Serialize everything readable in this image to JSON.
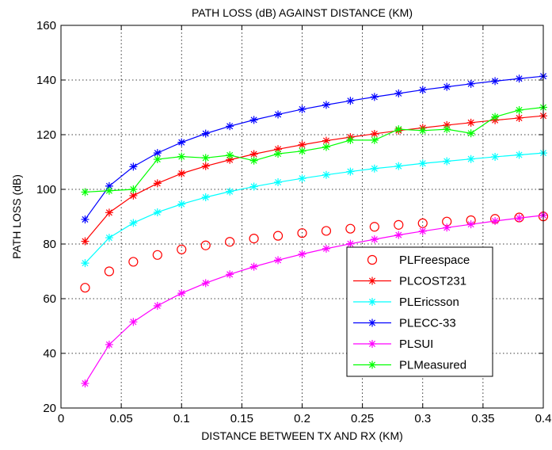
{
  "chart_data": {
    "type": "line",
    "title": "PATH LOSS (dB) AGAINST DISTANCE (KM)",
    "xlabel": "DISTANCE BETWEEN TX AND RX (KM)",
    "ylabel": "PATH LOSS (dB)",
    "xlim": [
      0,
      0.4
    ],
    "ylim": [
      20,
      160
    ],
    "xticks": [
      "0",
      "0.05",
      "0.1",
      "0.15",
      "0.2",
      "0.25",
      "0.3",
      "0.35",
      "0.4"
    ],
    "yticks": [
      "20",
      "40",
      "60",
      "80",
      "100",
      "120",
      "140",
      "160"
    ],
    "grid": true,
    "legend_position": "bottom-right",
    "x": [
      0.02,
      0.04,
      0.06,
      0.08,
      0.1,
      0.12,
      0.14,
      0.16,
      0.18,
      0.2,
      0.22,
      0.24,
      0.26,
      0.28,
      0.3,
      0.32,
      0.34,
      0.36,
      0.38,
      0.4
    ],
    "series": [
      {
        "name": "PLFreespace",
        "color": "#ff0000",
        "marker": "circle",
        "line": false,
        "values": [
          64.0,
          70.0,
          73.5,
          76.0,
          78.0,
          79.5,
          80.8,
          82.0,
          83.0,
          84.0,
          84.8,
          85.6,
          86.3,
          87.0,
          87.6,
          88.2,
          88.7,
          89.2,
          89.7,
          90.1
        ]
      },
      {
        "name": "PLCOST231",
        "color": "#ff0000",
        "marker": "star",
        "line": true,
        "values": [
          81.0,
          91.5,
          97.7,
          102.2,
          105.8,
          108.5,
          110.8,
          112.9,
          114.7,
          116.3,
          117.8,
          119.1,
          120.3,
          121.5,
          122.5,
          123.5,
          124.4,
          125.3,
          126.1,
          126.9
        ]
      },
      {
        "name": "PLEricsson",
        "color": "#00ffff",
        "marker": "star",
        "line": true,
        "values": [
          73.0,
          82.3,
          87.7,
          91.6,
          94.6,
          97.1,
          99.2,
          101.0,
          102.6,
          104.0,
          105.3,
          106.5,
          107.6,
          108.5,
          109.5,
          110.3,
          111.1,
          111.9,
          112.6,
          113.3
        ]
      },
      {
        "name": "PLECC-33",
        "color": "#0000ff",
        "marker": "star",
        "line": true,
        "values": [
          89.0,
          101.2,
          108.3,
          113.3,
          117.2,
          120.4,
          123.1,
          125.4,
          127.4,
          129.3,
          130.9,
          132.4,
          133.8,
          135.1,
          136.4,
          137.5,
          138.6,
          139.6,
          140.5,
          141.4
        ]
      },
      {
        "name": "PLSUI",
        "color": "#ff00ff",
        "marker": "star",
        "line": true,
        "values": [
          29.0,
          43.2,
          51.5,
          57.4,
          62.0,
          65.7,
          68.9,
          71.7,
          74.1,
          76.3,
          78.3,
          80.1,
          81.7,
          83.3,
          84.7,
          86.0,
          87.2,
          88.4,
          89.5,
          90.5
        ]
      },
      {
        "name": "PLMeasured",
        "color": "#00ff00",
        "marker": "star",
        "line": true,
        "values": [
          99.0,
          99.5,
          100.0,
          111.0,
          112.0,
          111.5,
          112.5,
          110.5,
          113.0,
          114.0,
          115.5,
          118.0,
          118.0,
          122.0,
          121.5,
          122.0,
          120.5,
          126.5,
          129.0,
          130.0
        ]
      }
    ]
  }
}
